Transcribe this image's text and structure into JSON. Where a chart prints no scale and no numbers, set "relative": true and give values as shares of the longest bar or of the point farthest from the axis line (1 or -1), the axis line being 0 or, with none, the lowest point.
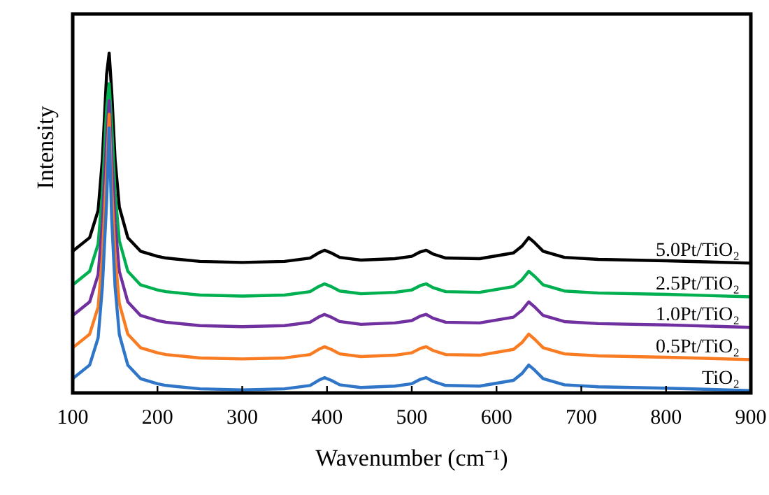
{
  "chart_data": {
    "type": "line",
    "relative": true,
    "xlabel": "Wavenumber (cm⁻¹)",
    "ylabel": "Intensity",
    "xlim": [
      100,
      900
    ],
    "xticks": [
      100,
      200,
      300,
      400,
      500,
      600,
      700,
      800,
      900
    ],
    "x": [
      100,
      120,
      130,
      135,
      140,
      143,
      146,
      150,
      155,
      165,
      180,
      200,
      210,
      250,
      300,
      350,
      380,
      390,
      397,
      405,
      415,
      440,
      480,
      500,
      510,
      517,
      525,
      540,
      580,
      620,
      630,
      638,
      645,
      655,
      680,
      720,
      800,
      900
    ],
    "series": [
      {
        "name": "5.0Pt/TiO₂",
        "color": "#000000",
        "values": [
          0.417,
          0.457,
          0.537,
          0.687,
          0.937,
          1,
          0.887,
          0.687,
          0.547,
          0.457,
          0.417,
          0.402,
          0.397,
          0.387,
          0.384,
          0.387,
          0.397,
          0.412,
          0.42,
          0.412,
          0.399,
          0.391,
          0.395,
          0.402,
          0.415,
          0.42,
          0.409,
          0.397,
          0.395,
          0.412,
          0.432,
          0.457,
          0.442,
          0.417,
          0.399,
          0.393,
          0.389,
          0.382
        ]
      },
      {
        "name": "2.5Pt/TiO₂",
        "color": "#00b050",
        "values": [
          0.318,
          0.358,
          0.438,
          0.588,
          0.838,
          0.91,
          0.788,
          0.588,
          0.448,
          0.358,
          0.318,
          0.303,
          0.298,
          0.288,
          0.285,
          0.288,
          0.298,
          0.313,
          0.321,
          0.313,
          0.3,
          0.292,
          0.296,
          0.303,
          0.316,
          0.321,
          0.31,
          0.298,
          0.296,
          0.313,
          0.333,
          0.358,
          0.343,
          0.318,
          0.3,
          0.294,
          0.29,
          0.283
        ]
      },
      {
        "name": "1.0Pt/TiO₂",
        "color": "#7030a0",
        "values": [
          0.228,
          0.268,
          0.348,
          0.498,
          0.748,
          0.86,
          0.698,
          0.498,
          0.358,
          0.268,
          0.228,
          0.213,
          0.208,
          0.198,
          0.195,
          0.198,
          0.208,
          0.223,
          0.231,
          0.223,
          0.21,
          0.202,
          0.206,
          0.213,
          0.226,
          0.231,
          0.22,
          0.208,
          0.206,
          0.223,
          0.243,
          0.268,
          0.253,
          0.228,
          0.21,
          0.204,
          0.2,
          0.193
        ]
      },
      {
        "name": "0.5Pt/TiO₂",
        "color": "#f97b22",
        "values": [
          0.133,
          0.173,
          0.253,
          0.403,
          0.653,
          0.82,
          0.603,
          0.403,
          0.263,
          0.173,
          0.133,
          0.118,
          0.113,
          0.103,
          0.1,
          0.103,
          0.113,
          0.128,
          0.136,
          0.128,
          0.115,
          0.107,
          0.111,
          0.118,
          0.131,
          0.136,
          0.125,
          0.113,
          0.111,
          0.128,
          0.148,
          0.173,
          0.158,
          0.133,
          0.115,
          0.109,
          0.105,
          0.098
        ]
      },
      {
        "name": "TiO₂",
        "color": "#2f75c8",
        "values": [
          0.042,
          0.082,
          0.162,
          0.312,
          0.562,
          0.78,
          0.512,
          0.312,
          0.172,
          0.082,
          0.042,
          0.027,
          0.022,
          0.012,
          0.009,
          0.012,
          0.022,
          0.037,
          0.045,
          0.037,
          0.024,
          0.016,
          0.02,
          0.027,
          0.04,
          0.045,
          0.034,
          0.022,
          0.02,
          0.037,
          0.057,
          0.082,
          0.067,
          0.042,
          0.024,
          0.018,
          0.014,
          0.007
        ]
      }
    ]
  }
}
